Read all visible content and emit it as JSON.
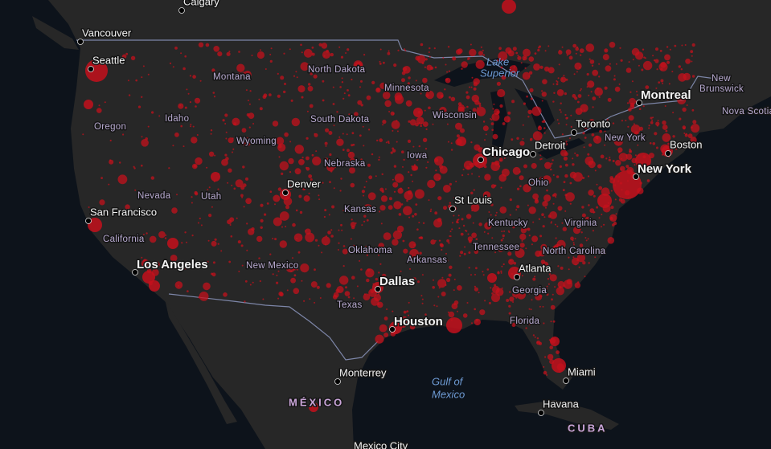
{
  "map": {
    "cities": [
      "Calgary",
      "Vancouver",
      "Seattle",
      "San Francisco",
      "Los Angeles",
      "Denver",
      "Dallas",
      "Houston",
      "Chicago",
      "St Louis",
      "Atlanta",
      "Detroit",
      "Toronto",
      "Montreal",
      "New York",
      "Boston",
      "Miami",
      "Monterrey",
      "Havana",
      "Mexico City"
    ],
    "states": [
      "Montana",
      "North Dakota",
      "Minnesota",
      "Wisconsin",
      "Idaho",
      "Oregon",
      "South Dakota",
      "Wyoming",
      "Iowa",
      "Nebraska",
      "Nevada",
      "Utah",
      "Kansas",
      "California",
      "Kentucky",
      "Virginia",
      "New Mexico",
      "Oklahoma",
      "Arkansas",
      "Tennessee",
      "North Carolina",
      "Georgia",
      "Texas",
      "Florida",
      "Ohio",
      "New York",
      "New",
      "Brunswick",
      "Nova Scotia"
    ],
    "countries": [
      "MÉXICO",
      "CUBA"
    ],
    "water": [
      [
        "Lake",
        "Superior"
      ],
      [
        "Gulf of",
        "Mexico"
      ]
    ]
  }
}
